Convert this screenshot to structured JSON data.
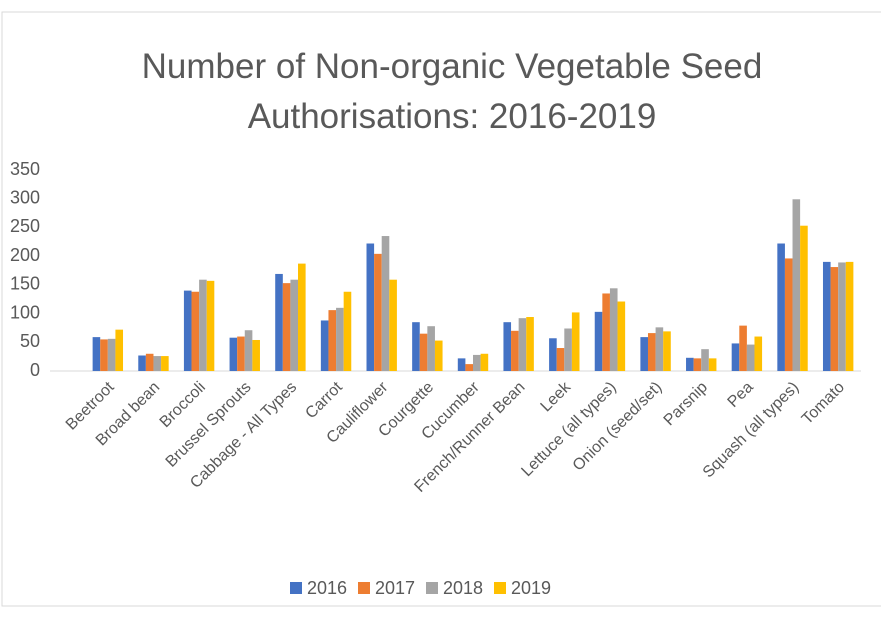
{
  "chart_data": {
    "type": "bar",
    "title": "Number of Non-organic Vegetable Seed Authorisations: 2016-2019",
    "categories": [
      "Beetroot",
      "Broad bean",
      "Broccoli",
      "Brussel Sprouts",
      "Cabbage - All Types",
      "Carrot",
      "Cauliflower",
      "Courgette",
      "Cucumber",
      "French/Runner Bean",
      "Leek",
      "Lettuce (all types)",
      "Onion (seed/set)",
      "Parsnip",
      "Pea",
      "Squash (all types)",
      "Tomato"
    ],
    "series": [
      {
        "name": "2016",
        "color": "#4472c4",
        "values": [
          59,
          27,
          140,
          58,
          169,
          88,
          222,
          85,
          22,
          85,
          57,
          103,
          59,
          23,
          48,
          222,
          190
        ]
      },
      {
        "name": "2017",
        "color": "#ed7d31",
        "values": [
          55,
          30,
          138,
          60,
          153,
          106,
          204,
          65,
          12,
          70,
          40,
          135,
          66,
          22,
          79,
          196,
          181
        ]
      },
      {
        "name": "2018",
        "color": "#a5a5a5",
        "values": [
          56,
          26,
          159,
          71,
          159,
          110,
          235,
          78,
          28,
          92,
          74,
          144,
          76,
          38,
          46,
          299,
          189
        ]
      },
      {
        "name": "2019",
        "color": "#ffc000",
        "values": [
          72,
          26,
          157,
          54,
          187,
          138,
          159,
          53,
          30,
          94,
          102,
          121,
          69,
          22,
          60,
          253,
          190
        ]
      }
    ],
    "ylim": [
      0,
      350
    ],
    "yticks": [
      0,
      50,
      100,
      150,
      200,
      250,
      300,
      350
    ],
    "grid": false,
    "legend": "bottom"
  }
}
